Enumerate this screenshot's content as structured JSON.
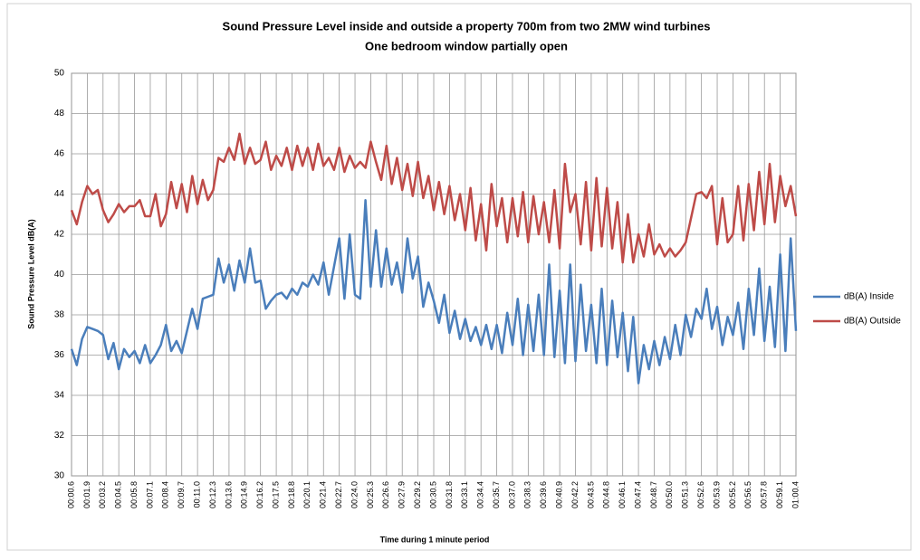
{
  "chart_data": {
    "type": "line",
    "title": "Sound Pressure Level inside and outside a property 700m from two  2MW wind turbines",
    "subtitle": "One bedroom window partially open",
    "x_label": "Time during 1 minute period",
    "y_label": "Sound Pressure Level dB(A)",
    "categories": [
      "00:00.6",
      null,
      null,
      "00:01.9",
      null,
      null,
      "00:03.2",
      null,
      null,
      "00:04.5",
      null,
      null,
      "00:05.8",
      null,
      null,
      "00:07.1",
      null,
      null,
      "00:08.4",
      null,
      null,
      "00:09.7",
      null,
      null,
      "00:11.0",
      null,
      null,
      "00:12.3",
      null,
      null,
      "00:13.6",
      null,
      null,
      "00:14.9",
      null,
      null,
      "00:16.2",
      null,
      null,
      "00:17.5",
      null,
      null,
      "00:18.8",
      null,
      null,
      "00:20.1",
      null,
      null,
      "00:21.4",
      null,
      null,
      "00:22.7",
      null,
      null,
      "00:24.0",
      null,
      null,
      "00:25.3",
      null,
      null,
      "00:26.6",
      null,
      null,
      "00:27.9",
      null,
      null,
      "00:29.2",
      null,
      null,
      "00:30.5",
      null,
      null,
      "00:31.8",
      null,
      null,
      "00:33.1",
      null,
      null,
      "00:34.4",
      null,
      null,
      "00:35.7",
      null,
      null,
      "00:37.0",
      null,
      null,
      "00:38.3",
      null,
      null,
      "00:39.6",
      null,
      null,
      "00:40.9",
      null,
      null,
      "00:42.2",
      null,
      null,
      "00:43.5",
      null,
      null,
      "00:44.8",
      null,
      null,
      "00:46.1",
      null,
      null,
      "00:47.4",
      null,
      null,
      "00:48.7",
      null,
      null,
      "00:50.0",
      null,
      null,
      "00:51.3",
      null,
      null,
      "00:52.6",
      null,
      null,
      "00:53.9",
      null,
      null,
      "00:55.2",
      null,
      null,
      "00:56.5",
      null,
      null,
      "00:57.8",
      null,
      null,
      "00:59.1",
      null,
      null,
      "01:00.4"
    ],
    "series": [
      {
        "name": "dB(A) Inside",
        "color": "#4a7ebb",
        "values": [
          36.3,
          35.5,
          36.8,
          37.4,
          37.3,
          37.2,
          37.0,
          35.8,
          36.6,
          35.3,
          36.3,
          35.9,
          36.2,
          35.6,
          36.5,
          35.6,
          36.0,
          36.5,
          37.5,
          36.2,
          36.7,
          36.1,
          37.2,
          38.3,
          37.3,
          38.8,
          38.9,
          39.0,
          40.8,
          39.6,
          40.5,
          39.2,
          40.7,
          39.6,
          41.3,
          39.6,
          39.7,
          38.3,
          38.7,
          39.0,
          39.1,
          38.8,
          39.3,
          39.0,
          39.6,
          39.4,
          40.0,
          39.5,
          40.6,
          39.0,
          40.4,
          41.8,
          38.8,
          42.0,
          39.0,
          38.8,
          43.7,
          39.4,
          42.2,
          39.4,
          41.3,
          39.5,
          40.6,
          39.1,
          41.8,
          39.8,
          40.9,
          38.4,
          39.6,
          38.7,
          37.6,
          39.0,
          37.1,
          38.2,
          36.8,
          37.8,
          36.7,
          37.4,
          36.5,
          37.5,
          36.3,
          37.5,
          36.1,
          38.1,
          36.5,
          38.8,
          36.0,
          38.5,
          36.2,
          39.0,
          36.0,
          40.5,
          35.9,
          39.2,
          35.6,
          40.5,
          35.7,
          39.5,
          36.2,
          38.5,
          35.6,
          39.3,
          35.5,
          38.7,
          35.9,
          38.1,
          35.2,
          37.9,
          34.6,
          36.5,
          35.3,
          36.7,
          35.5,
          36.9,
          35.8,
          37.5,
          36.0,
          38.0,
          36.9,
          38.3,
          37.8,
          39.3,
          37.3,
          38.4,
          36.5,
          37.9,
          37.0,
          38.6,
          36.3,
          39.3,
          37.0,
          40.3,
          36.7,
          39.4,
          36.4,
          41.0,
          36.2,
          41.8,
          37.2
        ]
      },
      {
        "name": "dB(A) Outside",
        "color": "#be4b48",
        "values": [
          43.2,
          42.5,
          43.6,
          44.4,
          44.0,
          44.2,
          43.2,
          42.6,
          43.0,
          43.5,
          43.1,
          43.4,
          43.4,
          43.7,
          42.9,
          42.9,
          44.0,
          42.4,
          43.0,
          44.6,
          43.3,
          44.5,
          43.1,
          44.9,
          43.5,
          44.7,
          43.7,
          44.2,
          45.8,
          45.6,
          46.3,
          45.7,
          47.0,
          45.5,
          46.3,
          45.5,
          45.7,
          46.6,
          45.2,
          45.9,
          45.4,
          46.3,
          45.2,
          46.4,
          45.4,
          46.3,
          45.2,
          46.5,
          45.4,
          45.8,
          45.2,
          46.3,
          45.1,
          45.9,
          45.3,
          45.6,
          45.3,
          46.6,
          45.6,
          44.7,
          46.4,
          44.5,
          45.8,
          44.2,
          45.5,
          43.9,
          45.6,
          43.8,
          44.9,
          43.2,
          44.6,
          43.0,
          44.4,
          42.7,
          44.0,
          42.2,
          44.3,
          41.7,
          43.5,
          41.2,
          44.5,
          42.4,
          43.8,
          41.6,
          43.8,
          41.9,
          44.1,
          41.6,
          43.9,
          42.0,
          43.6,
          41.6,
          44.2,
          41.3,
          45.5,
          43.1,
          44.0,
          41.5,
          44.6,
          41.2,
          44.8,
          41.4,
          44.3,
          41.3,
          43.6,
          40.6,
          43.0,
          40.6,
          42.0,
          40.9,
          42.5,
          41.0,
          41.5,
          40.9,
          41.3,
          40.9,
          41.2,
          41.6,
          42.8,
          44.0,
          44.1,
          43.8,
          44.4,
          41.5,
          43.8,
          41.6,
          42.0,
          44.4,
          41.7,
          44.5,
          42.2,
          45.1,
          42.5,
          45.5,
          42.6,
          44.9,
          43.4,
          44.4,
          42.9
        ]
      }
    ],
    "ylim": [
      30,
      50
    ],
    "yticks": [
      30,
      32,
      34,
      36,
      38,
      40,
      42,
      44,
      46,
      48,
      50
    ],
    "grid": true,
    "legend": "right"
  }
}
